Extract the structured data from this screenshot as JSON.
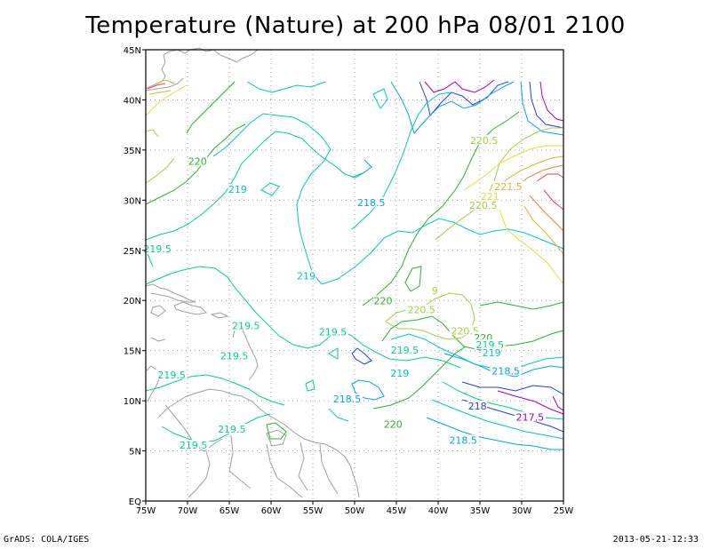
{
  "title": "Temperature (Nature) at 200 hPa 08/01 2100",
  "footer_left": "GrADS: COLA/IGES",
  "footer_right": "2013-05-21-12:33",
  "x_ticks": [
    "75W",
    "70W",
    "65W",
    "60W",
    "55W",
    "50W",
    "45W",
    "40W",
    "35W",
    "30W",
    "25W"
  ],
  "y_ticks": [
    "EQ",
    "5N",
    "10N",
    "15N",
    "20N",
    "25N",
    "30N",
    "35N",
    "40N",
    "45N"
  ],
  "grid": true,
  "colors": {
    "coast": "#a0a0a0",
    "c217_5": "#a000c8",
    "c218": "#1e3cff",
    "c218_5": "#00a0ff",
    "c219": "#00c8c8",
    "c219_5": "#00d28c",
    "c220": "#28b428",
    "c220_5": "#a0d23c",
    "c221": "#e6dc32",
    "c221_5": "#e6af2d",
    "c222": "#f08228",
    "c222_5": "#fa3c3c"
  },
  "contour_labels": [
    {
      "text": "220.5",
      "color": "#a0d23c",
      "lon": -34.5,
      "lat": 35.8
    },
    {
      "text": "220",
      "color": "#28b428",
      "lon": -68.8,
      "lat": 33.7
    },
    {
      "text": "219",
      "color": "#00c8c8",
      "lon": -64.0,
      "lat": 30.9
    },
    {
      "text": "218.5",
      "color": "#00a0ff",
      "lon": -48.0,
      "lat": 29.6
    },
    {
      "text": "221.5",
      "color": "#e6af2d",
      "lon": -31.6,
      "lat": 31.2
    },
    {
      "text": "221",
      "color": "#e6dc32",
      "lon": -33.8,
      "lat": 30.2
    },
    {
      "text": "220.5",
      "color": "#a0d23c",
      "lon": -34.6,
      "lat": 29.3
    },
    {
      "text": "219.5",
      "color": "#00d28c",
      "lon": -73.6,
      "lat": 25.0
    },
    {
      "text": "219",
      "color": "#00c8c8",
      "lon": -55.8,
      "lat": 22.3
    },
    {
      "text": "220",
      "color": "#28b428",
      "lon": -46.6,
      "lat": 19.8
    },
    {
      "text": "220.5",
      "color": "#a0d23c",
      "lon": -42.0,
      "lat": 18.9
    },
    {
      "text": "219.5",
      "color": "#00d28c",
      "lon": -63.0,
      "lat": 17.3
    },
    {
      "text": "219.5",
      "color": "#00d28c",
      "lon": -52.6,
      "lat": 16.7
    },
    {
      "text": "220.5",
      "color": "#a0d23c",
      "lon": -36.8,
      "lat": 16.8
    },
    {
      "text": "220",
      "color": "#28b428",
      "lon": -34.6,
      "lat": 16.1
    },
    {
      "text": "219.5",
      "color": "#00d28c",
      "lon": -33.8,
      "lat": 15.4
    },
    {
      "text": "219",
      "color": "#00c8c8",
      "lon": -33.6,
      "lat": 14.6
    },
    {
      "text": "219.5",
      "color": "#00d28c",
      "lon": -64.4,
      "lat": 14.3
    },
    {
      "text": "219.5",
      "color": "#00d28c",
      "lon": -44.0,
      "lat": 14.9
    },
    {
      "text": "218.5",
      "color": "#00a0ff",
      "lon": -31.9,
      "lat": 12.8
    },
    {
      "text": "219.5",
      "color": "#00d28c",
      "lon": -71.9,
      "lat": 12.4
    },
    {
      "text": "219",
      "color": "#00c8c8",
      "lon": -44.6,
      "lat": 12.6
    },
    {
      "text": "218.5",
      "color": "#00a0ff",
      "lon": -50.9,
      "lat": 10.0
    },
    {
      "text": "218",
      "color": "#1e3cff",
      "lon": -35.3,
      "lat": 9.3
    },
    {
      "text": "217.5",
      "color": "#a000c8",
      "lon": -29.0,
      "lat": 8.2
    },
    {
      "text": "220",
      "color": "#28b428",
      "lon": -45.4,
      "lat": 7.5
    },
    {
      "text": "219.5",
      "color": "#00d28c",
      "lon": -64.7,
      "lat": 7.0
    },
    {
      "text": "218.5",
      "color": "#00a0ff",
      "lon": -37.0,
      "lat": 5.9
    },
    {
      "text": "219.5",
      "color": "#00d28c",
      "lon": -69.3,
      "lat": 5.4
    },
    {
      "text": "9",
      "color": "#a0d23c",
      "lon": -40.4,
      "lat": 20.8
    }
  ]
}
